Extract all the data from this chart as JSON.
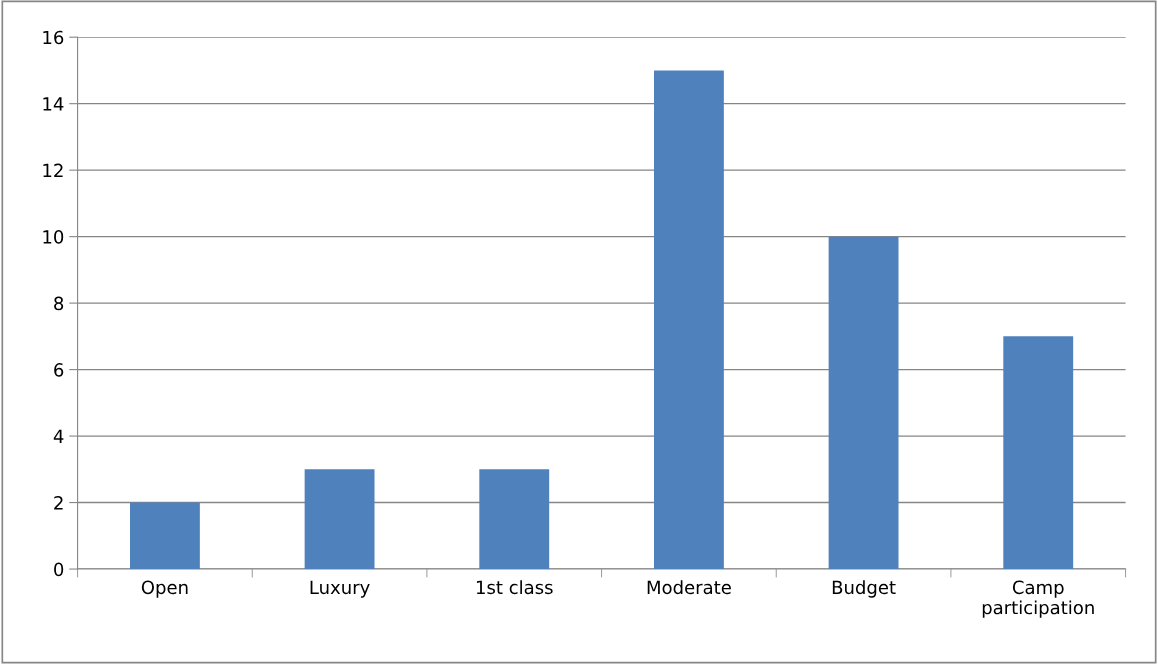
{
  "chart_data": {
    "type": "bar",
    "categories": [
      "Open",
      "Luxury",
      "1st class",
      "Moderate",
      "Budget",
      "Camp\nparticipation"
    ],
    "values": [
      2,
      3,
      3,
      15,
      10,
      7
    ],
    "color": "#4f81bd",
    "ylim": [
      0,
      16
    ],
    "yticks": [
      0,
      2,
      4,
      6,
      8,
      10,
      12,
      14,
      16
    ],
    "grid": "y"
  }
}
